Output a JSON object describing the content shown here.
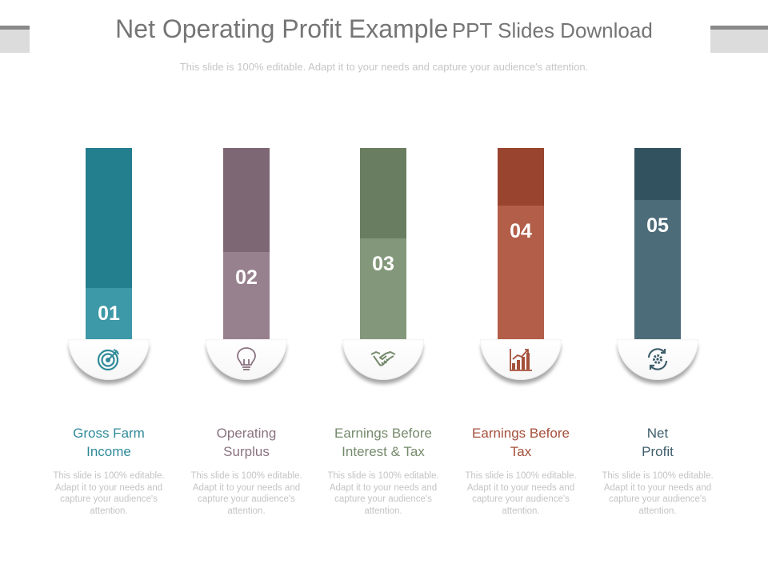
{
  "title": {
    "main": "Net Operating Profit Example",
    "sub": "PPT Slides Download"
  },
  "subtitle": "This slide is 100% editable. Adapt it to your needs and capture your audience's attention.",
  "steps": [
    {
      "number": "01",
      "label_line1": "Gross Farm",
      "label_line2": "Income",
      "icon": "target-icon",
      "color": "#2f8a99",
      "desc": "This slide is 100% editable. Adapt it to your needs and capture your audience's attention.",
      "level": 0.27
    },
    {
      "number": "02",
      "label_line1": "Operating",
      "label_line2": "Surplus",
      "icon": "lightbulb-icon",
      "color": "#8a7380",
      "desc": "This slide is 100% editable. Adapt it to your needs and capture your audience's attention.",
      "level": 0.46
    },
    {
      "number": "03",
      "label_line1": "Earnings Before",
      "label_line2": "Interest & Tax",
      "icon": "handshake-icon",
      "color": "#758a6c",
      "desc": "This slide is 100% editable. Adapt it to your needs and capture your audience's attention.",
      "level": 0.53
    },
    {
      "number": "04",
      "label_line1": "Earnings Before",
      "label_line2": "Tax",
      "icon": "bar-chart-icon",
      "color": "#a5503b",
      "desc": "This slide is 100% editable. Adapt it to your needs and capture your audience's attention.",
      "level": 0.7
    },
    {
      "number": "05",
      "label_line1": "Net",
      "label_line2": "Profit",
      "icon": "gear-cycle-icon",
      "color": "#3f5e6b",
      "desc": "This slide is 100% editable. Adapt it to your needs and capture your audience's attention.",
      "level": 0.73
    }
  ]
}
